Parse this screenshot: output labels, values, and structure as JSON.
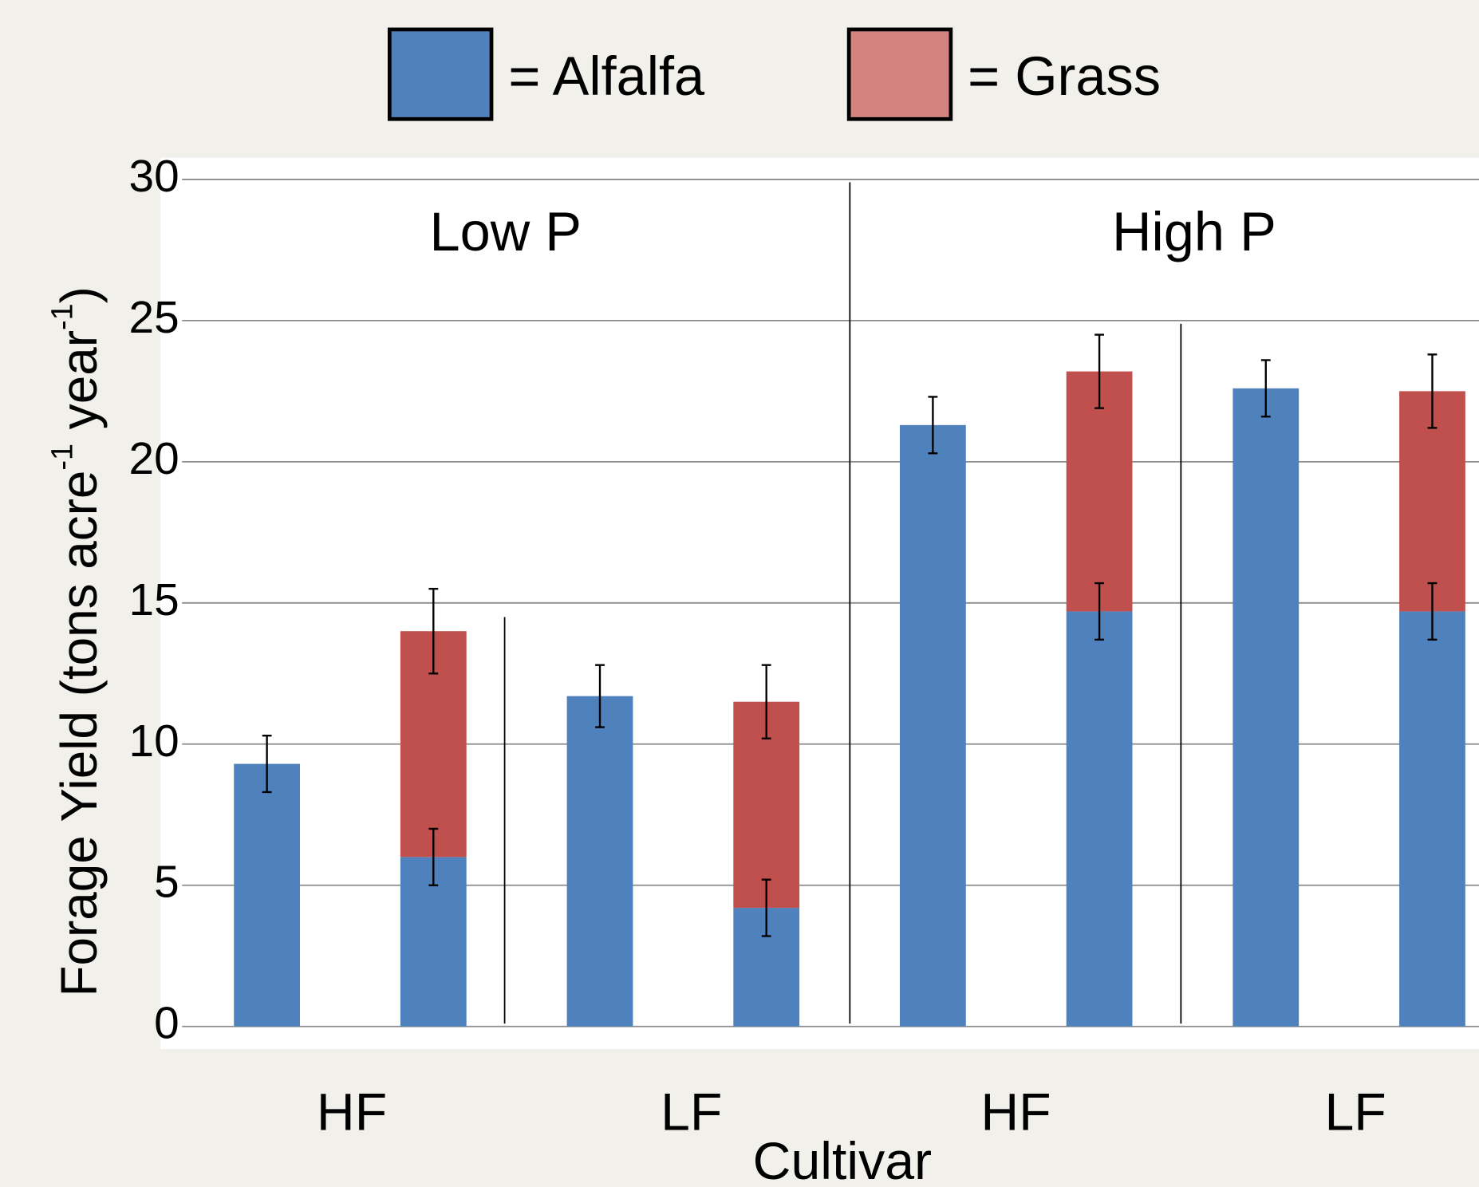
{
  "chart_data": {
    "type": "stacked-bar",
    "ylabel": [
      "Forage Yield (tons acre",
      "-1",
      " year",
      "-1",
      ")"
    ],
    "xlabel": "Cultivar",
    "categories": [
      null,
      null,
      null,
      null,
      null,
      null,
      null,
      null
    ],
    "cultivar_labels": [
      "HF",
      "LF",
      "HF",
      "LF"
    ],
    "group_labels": [
      "Low P",
      "High P"
    ],
    "series": [
      {
        "name": "= Alfalfa",
        "color": "#4f81bd",
        "legend_color": "#4f81bd",
        "values": [
          9.3,
          6.0,
          11.7,
          4.2,
          21.3,
          14.7,
          22.6,
          14.7
        ],
        "errors": [
          1.0,
          1.0,
          1.1,
          1.0,
          1.0,
          1.0,
          1.0,
          1.0
        ]
      },
      {
        "name": "= Grass",
        "color": "#c0504d",
        "legend_color": "#d4847f",
        "values": [
          null,
          8.0,
          null,
          7.3,
          null,
          8.5,
          null,
          7.8
        ],
        "errors": [
          null,
          1.5,
          null,
          1.3,
          null,
          1.3,
          null,
          1.3
        ]
      }
    ],
    "ylim": [
      0,
      30
    ],
    "yticks": [
      0,
      5,
      10,
      15,
      20,
      25,
      30
    ],
    "grid": true
  }
}
